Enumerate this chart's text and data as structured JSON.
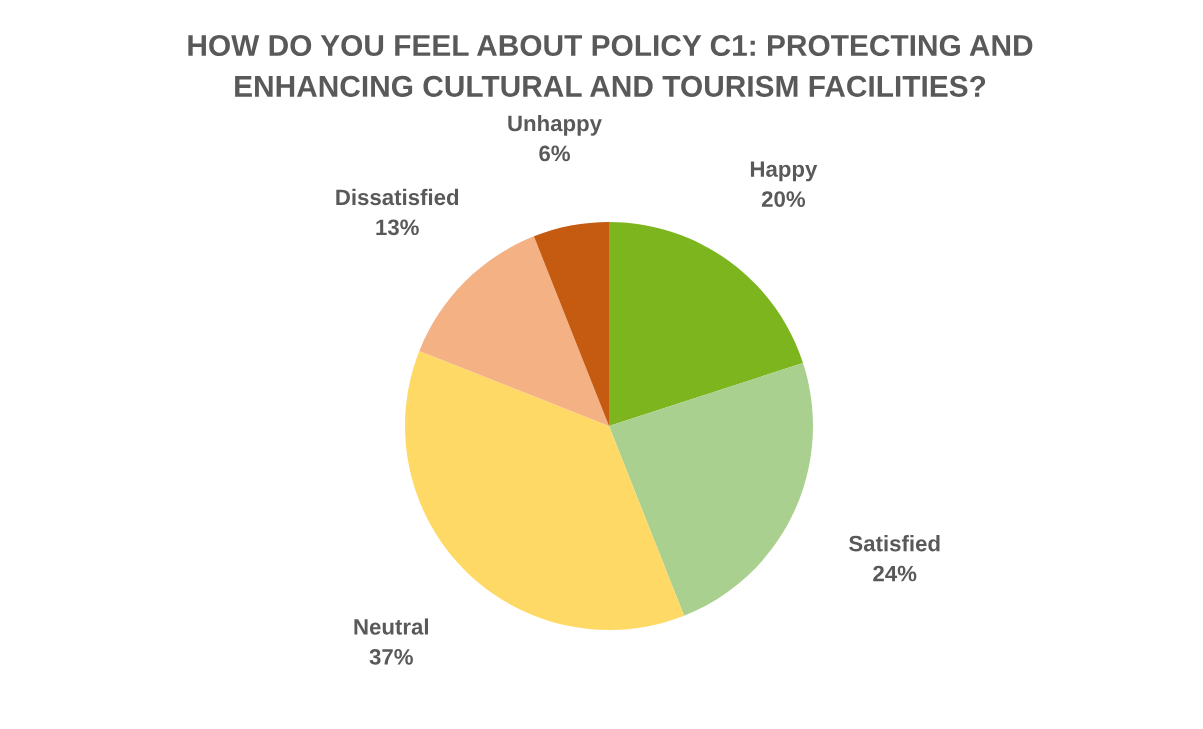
{
  "chart_data": {
    "type": "pie",
    "title": "HOW DO YOU FEEL ABOUT POLICY C1: PROTECTING AND ENHANCING CULTURAL AND TOURISM FACILITIES?",
    "categories": [
      "Happy",
      "Satisfied",
      "Neutral",
      "Dissatisfied",
      "Unhappy"
    ],
    "values": [
      20,
      24,
      37,
      13,
      6
    ],
    "colors": [
      "#7cb51e",
      "#a9d08e",
      "#ffd966",
      "#f4b183",
      "#c55a11"
    ],
    "value_labels": [
      "20%",
      "24%",
      "37%",
      "13%",
      "6%"
    ]
  }
}
